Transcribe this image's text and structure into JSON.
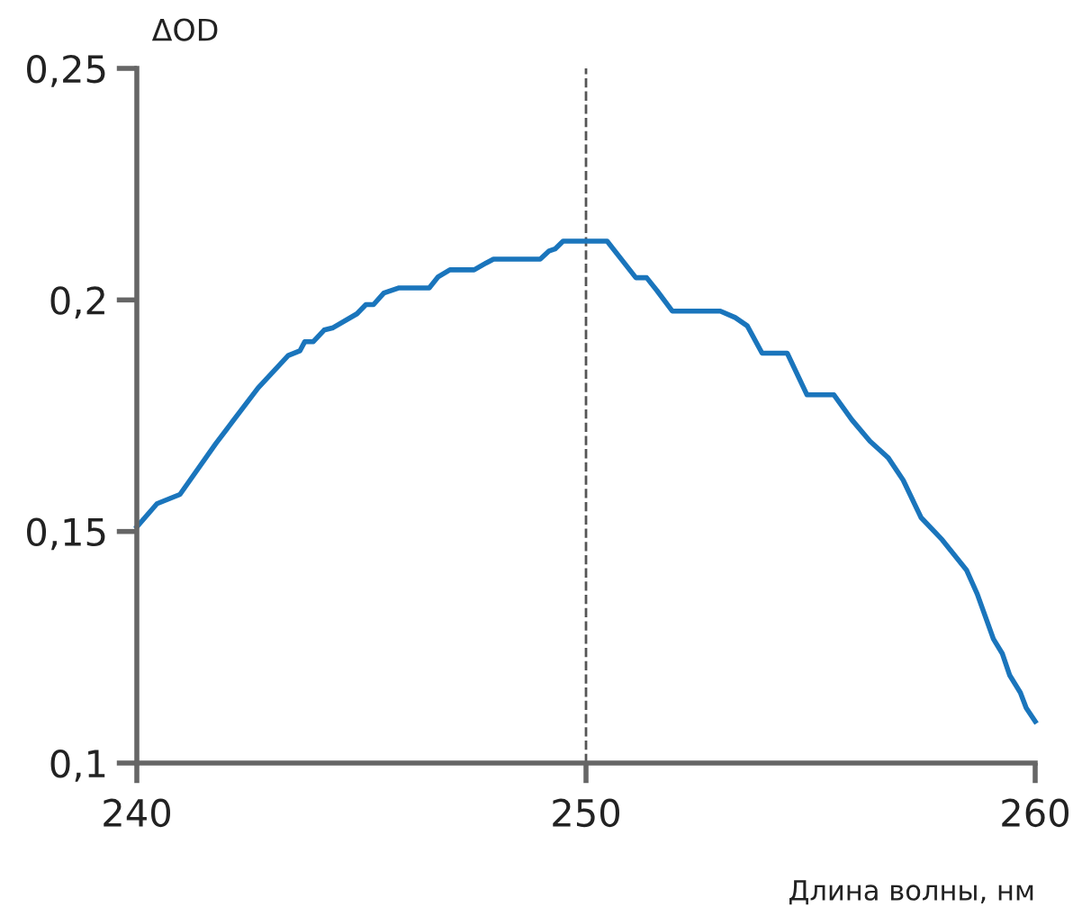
{
  "chart_data": {
    "type": "line",
    "ylabel": "ΔOD",
    "xlabel": "Длина волны, нм",
    "x": [
      240,
      240.45,
      240.96,
      241.76,
      242.7,
      243.37,
      243.63,
      243.74,
      243.93,
      244.17,
      244.37,
      244.9,
      245.1,
      245.27,
      245.5,
      245.84,
      246.51,
      246.71,
      246.97,
      247.51,
      247.78,
      247.94,
      248.98,
      249.18,
      249.31,
      249.49,
      250.47,
      251.11,
      251.35,
      251.58,
      251.92,
      252.99,
      253.32,
      253.59,
      253.92,
      254.48,
      254.92,
      255.52,
      255.92,
      256.32,
      256.73,
      257.06,
      257.46,
      257.93,
      258.47,
      258.71,
      259.07,
      259.27,
      259.43,
      259.67,
      259.8,
      260
    ],
    "series": [
      {
        "color": "#1a75bc",
        "values": [
          0.151,
          0.156,
          0.158,
          0.169,
          0.181,
          0.188,
          0.189,
          0.191,
          0.191,
          0.1935,
          0.194,
          0.197,
          0.199,
          0.199,
          0.2015,
          0.2026,
          0.2026,
          0.205,
          0.2065,
          0.2065,
          0.208,
          0.2088,
          0.2088,
          0.2106,
          0.211,
          0.2127,
          0.2127,
          0.2048,
          0.2048,
          0.202,
          0.1976,
          0.1976,
          0.1962,
          0.1944,
          0.1885,
          0.1885,
          0.1795,
          0.1795,
          0.1741,
          0.1695,
          0.1659,
          0.1611,
          0.153,
          0.1482,
          0.1417,
          0.1365,
          0.1268,
          0.1236,
          0.119,
          0.1152,
          0.1119,
          0.109
        ]
      }
    ],
    "xlim": [
      240,
      260
    ],
    "xticks": [
      240,
      250,
      260
    ],
    "ylim": [
      0.1,
      0.25
    ],
    "yticks": [
      {
        "value": 0.1,
        "label": "0,1"
      },
      {
        "value": 0.15,
        "label": "0,15"
      },
      {
        "value": 0.2,
        "label": "0,2"
      },
      {
        "value": 0.25,
        "label": "0,25"
      }
    ],
    "ref_lines": [
      {
        "axis": "x",
        "value": 250,
        "color": "#555555",
        "line_style": "dashed"
      }
    ],
    "grid": false,
    "legend": false,
    "marker": "none",
    "line_style": "solid"
  }
}
